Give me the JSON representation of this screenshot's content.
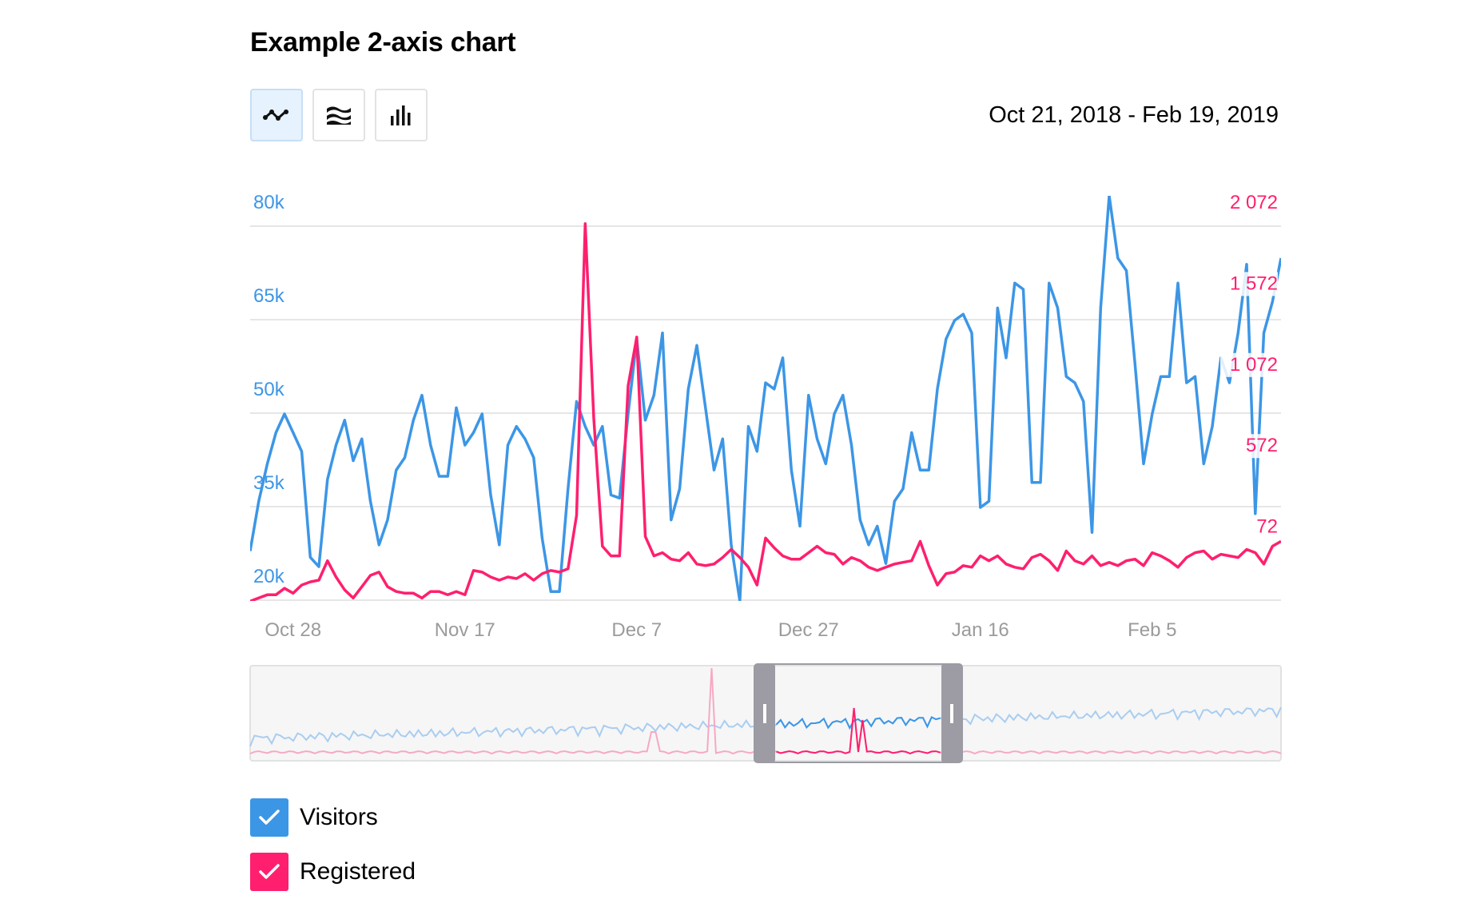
{
  "title": "Example 2-axis chart",
  "toolbar": {
    "buttons": [
      {
        "name": "line-chart-button",
        "icon": "line-chart-icon",
        "active": true
      },
      {
        "name": "area-chart-button",
        "icon": "area-chart-icon",
        "active": false
      },
      {
        "name": "bar-chart-button",
        "icon": "bar-chart-icon",
        "active": false
      }
    ]
  },
  "date_range": "Oct 21, 2018 - Feb 19, 2019",
  "colors": {
    "visitors": "#3c96e6",
    "registered": "#ff1f6e",
    "grid": "#e6e6e6",
    "axis_text": "#9b9b9b"
  },
  "legend": {
    "visitors": {
      "label": "Visitors",
      "checked": true,
      "color": "#3c96e6"
    },
    "registered": {
      "label": "Registered",
      "checked": true,
      "color": "#ff1f6e"
    }
  },
  "chart_data": {
    "type": "line",
    "title": "Example 2-axis chart",
    "y_left": {
      "ticks": [
        "20k",
        "35k",
        "50k",
        "65k",
        "80k"
      ],
      "ylim": [
        15000,
        80000
      ]
    },
    "y_right": {
      "ticks": [
        "72",
        "572",
        "1 072",
        "1 572",
        "2 072"
      ],
      "ylim": [
        -428,
        2072
      ]
    },
    "x_ticks": [
      "Oct 28",
      "Nov 17",
      "Dec 7",
      "Dec 27",
      "Jan 16",
      "Feb 5"
    ],
    "x_range": [
      "Oct 23, 2018",
      "Feb 19, 2019"
    ],
    "grid": true,
    "series": [
      {
        "name": "Visitors",
        "axis": "left",
        "values": [
          23000,
          31000,
          37000,
          42000,
          45000,
          42000,
          39000,
          22000,
          20500,
          34500,
          40000,
          44000,
          37500,
          41000,
          31000,
          24000,
          28000,
          36000,
          38000,
          44000,
          48000,
          40000,
          35000,
          35000,
          46000,
          40000,
          42000,
          45000,
          32000,
          24000,
          40000,
          43000,
          41000,
          38000,
          25000,
          16500,
          16500,
          33000,
          47000,
          43000,
          40000,
          43000,
          32000,
          31500,
          45000,
          57000,
          44000,
          48000,
          58000,
          28000,
          33000,
          49000,
          56000,
          46000,
          36000,
          41000,
          24000,
          15000,
          43000,
          39000,
          50000,
          49000,
          54000,
          36000,
          27000,
          48000,
          41000,
          37000,
          45000,
          48000,
          40000,
          28000,
          24000,
          27000,
          21000,
          31000,
          33000,
          42000,
          36000,
          36000,
          49000,
          57000,
          60000,
          61000,
          58000,
          30000,
          31000,
          62000,
          54000,
          66000,
          65000,
          34000,
          34000,
          66000,
          62000,
          51000,
          50000,
          47000,
          26000,
          62000,
          80000,
          70000,
          68000,
          53000,
          37000,
          45000,
          51000,
          51000,
          66000,
          50000,
          51000,
          37000,
          43000,
          54000,
          50000,
          58000,
          69000,
          29000,
          58000,
          63000,
          70000
        ]
      },
      {
        "name": "Registered",
        "axis": "right",
        "values": [
          -430,
          -410,
          -390,
          -390,
          -350,
          -380,
          -330,
          -310,
          -300,
          -180,
          -280,
          -360,
          -410,
          -340,
          -270,
          -250,
          -340,
          -370,
          -380,
          -380,
          -410,
          -370,
          -370,
          -390,
          -370,
          -390,
          -240,
          -250,
          -280,
          -300,
          -280,
          -290,
          -260,
          -300,
          -260,
          -240,
          -250,
          -230,
          100,
          1900,
          700,
          -90,
          -150,
          -150,
          900,
          1200,
          -30,
          -150,
          -130,
          -170,
          -180,
          -130,
          -200,
          -210,
          -200,
          -160,
          -110,
          -160,
          -220,
          -330,
          -40,
          -100,
          -150,
          -170,
          -170,
          -130,
          -90,
          -130,
          -140,
          -200,
          -160,
          -180,
          -220,
          -240,
          -220,
          -200,
          -190,
          -180,
          -60,
          -210,
          -330,
          -260,
          -250,
          -210,
          -220,
          -150,
          -180,
          -150,
          -200,
          -220,
          -230,
          -160,
          -140,
          -180,
          -240,
          -120,
          -180,
          -200,
          -150,
          -210,
          -190,
          -210,
          -180,
          -170,
          -210,
          -130,
          -150,
          -180,
          -220,
          -160,
          -130,
          -120,
          -170,
          -140,
          -150,
          -160,
          -110,
          -130,
          -200,
          -90,
          -60
        ]
      }
    ],
    "navigator": {
      "window_start": "Dec 19, 2018",
      "window_end": "Feb 19, 2019"
    }
  }
}
